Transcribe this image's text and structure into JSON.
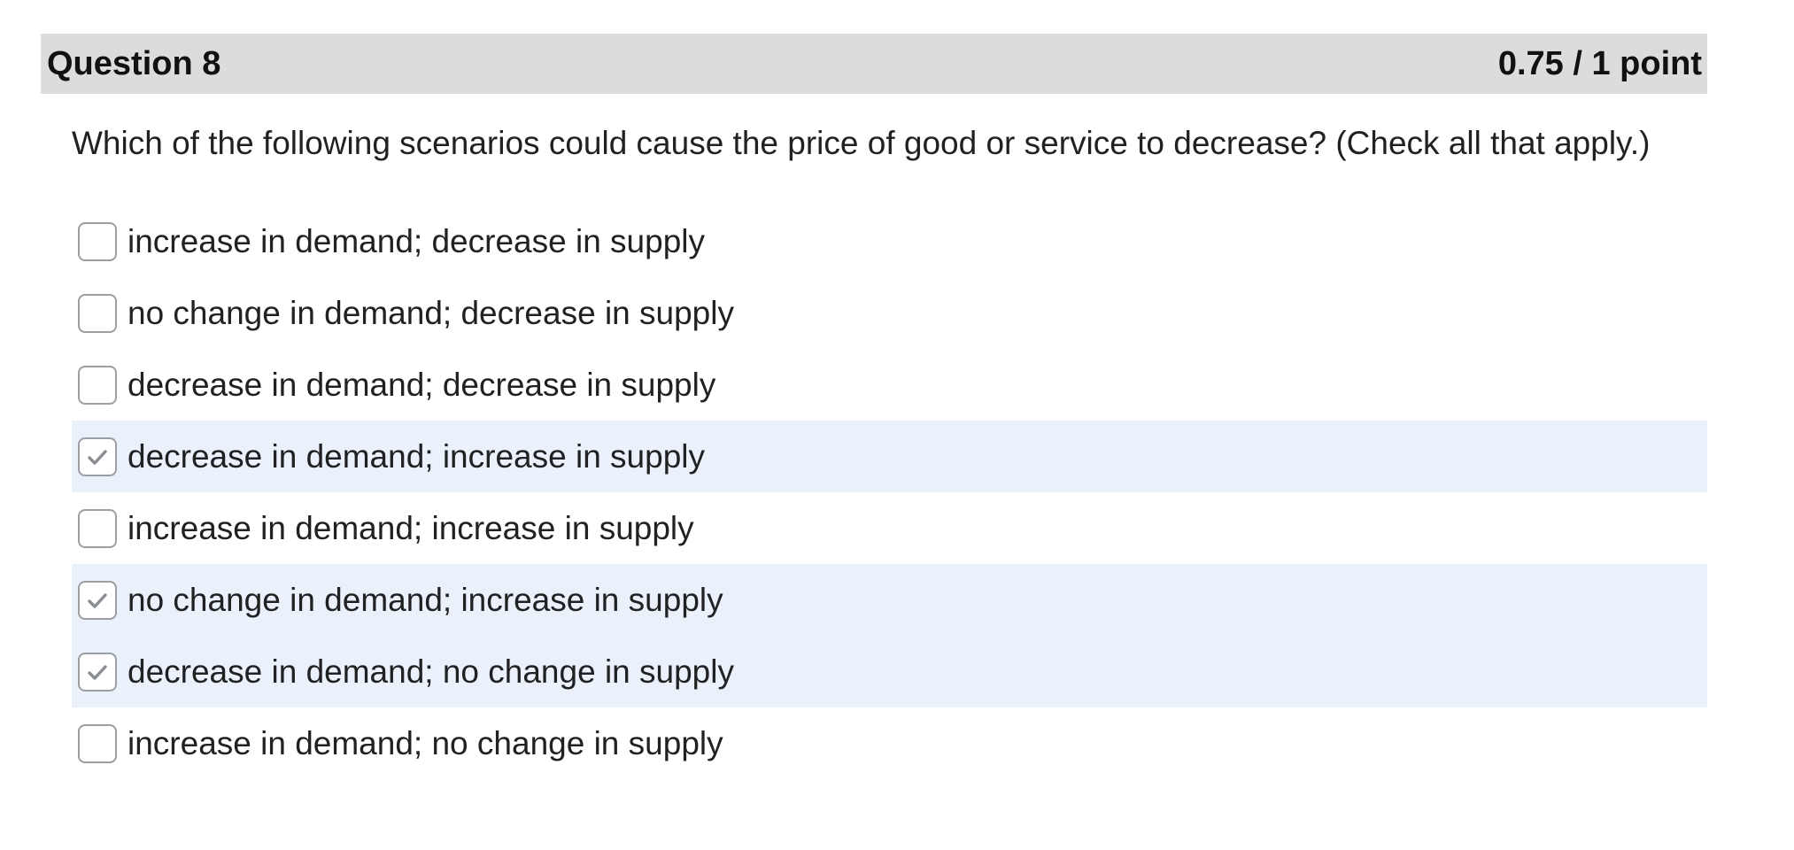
{
  "question": {
    "title": "Question 8",
    "score": "0.75 / 1 point",
    "prompt": "Which of the following scenarios could cause the price of good or service to decrease? (Check all that apply.)",
    "options": [
      {
        "label": "increase in demand; decrease in supply",
        "checked": false
      },
      {
        "label": "no change in demand; decrease in supply",
        "checked": false
      },
      {
        "label": "decrease in demand; decrease in supply",
        "checked": false
      },
      {
        "label": "decrease in demand; increase in supply",
        "checked": true
      },
      {
        "label": "increase in demand; increase in supply",
        "checked": false
      },
      {
        "label": "no change in demand; increase in supply",
        "checked": true
      },
      {
        "label": "decrease in demand; no change in supply",
        "checked": true
      },
      {
        "label": "increase in demand; no change in supply",
        "checked": false
      }
    ]
  },
  "colors": {
    "header_bg": "#dcdcdc",
    "selected_bg": "#eaf1fa",
    "checkmark": "#8a8e92"
  },
  "icons": {
    "checkbox_checked": "checkmark-icon"
  }
}
